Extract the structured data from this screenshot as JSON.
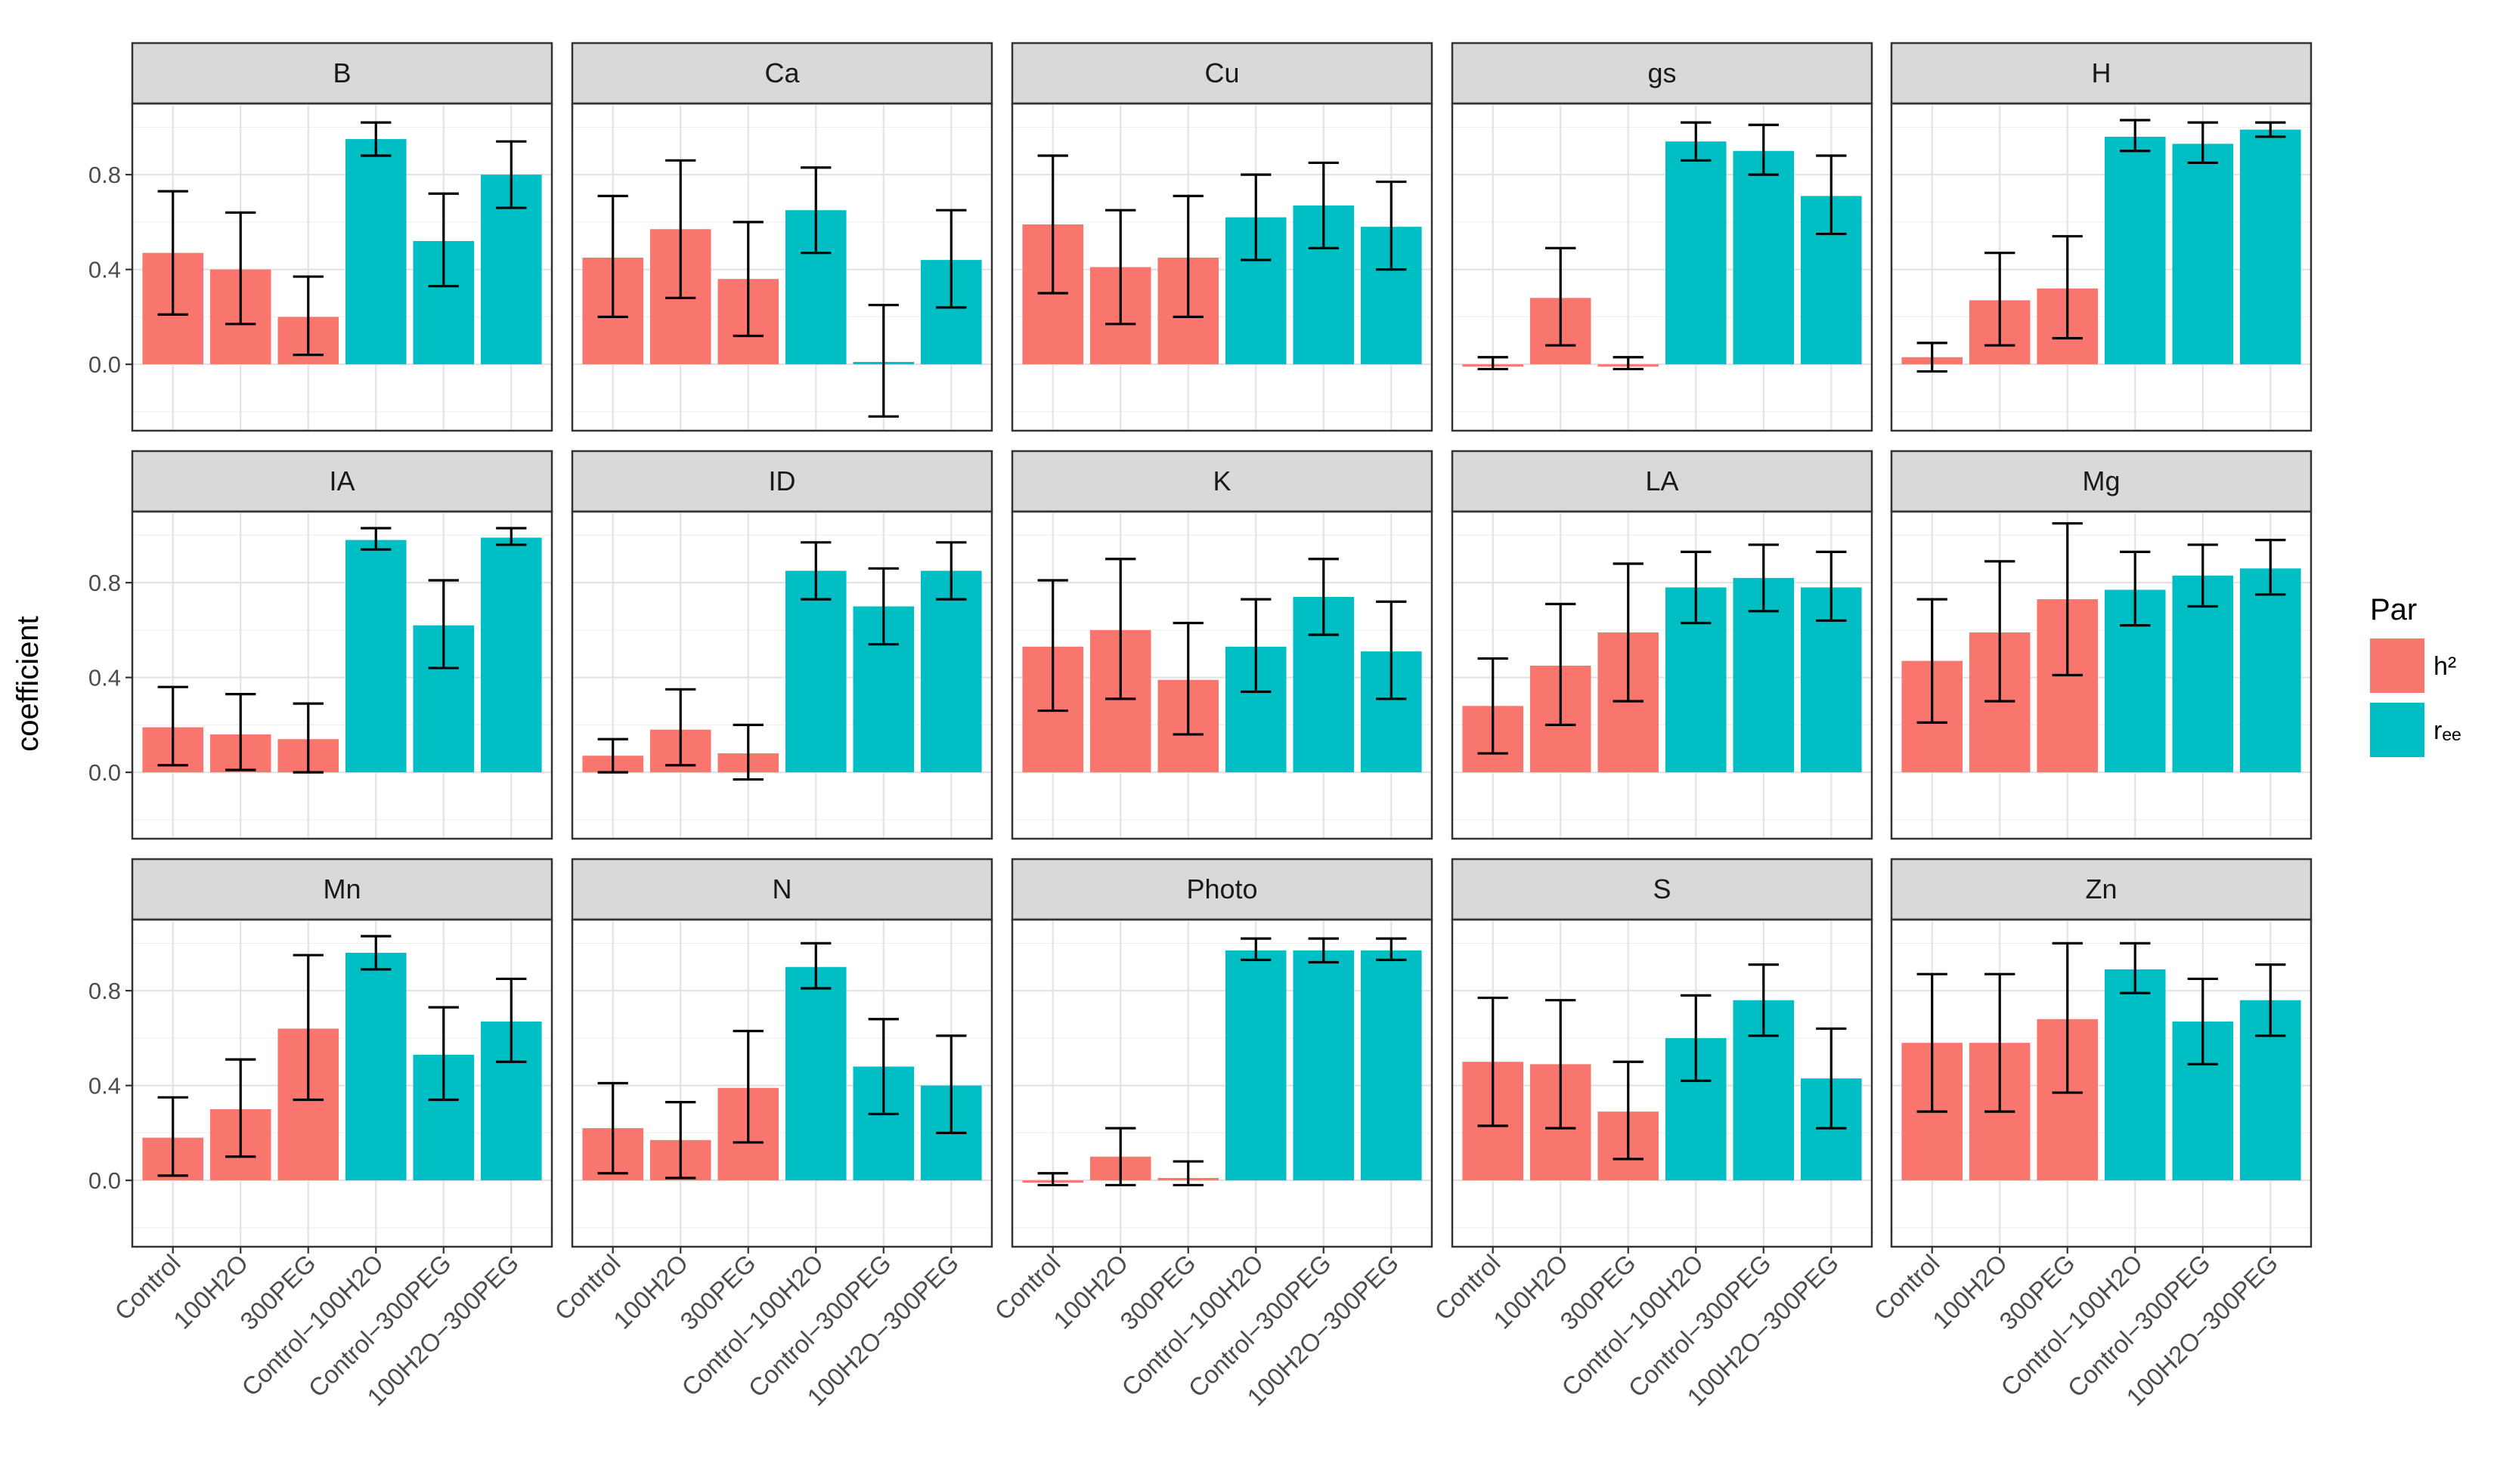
{
  "chart_data": {
    "type": "bar",
    "layout": "facet-grid 3x5",
    "ylabel": "coefficient",
    "ylim": [
      -0.28,
      1.1
    ],
    "yticks": [
      0.0,
      0.4,
      0.8
    ],
    "ytick_labels": [
      "0.0",
      "0.4",
      "0.8"
    ],
    "grid": true,
    "categories": [
      "Control",
      "100H2O",
      "300PEG",
      "Control−100H2O",
      "Control−300PEG",
      "100H2O−300PEG"
    ],
    "category_par": [
      "h2",
      "h2",
      "h2",
      "r",
      "r",
      "r"
    ],
    "legend": {
      "title": "Par",
      "position": "right",
      "items": [
        {
          "key": "h2",
          "label": "h²",
          "color": "#F8766D"
        },
        {
          "key": "r",
          "label": "rₑₑ",
          "color": "#00BFC4"
        }
      ]
    },
    "panels": [
      {
        "name": "B",
        "values": [
          0.47,
          0.4,
          0.2,
          0.95,
          0.52,
          0.8
        ],
        "lower": [
          0.21,
          0.17,
          0.04,
          0.88,
          0.33,
          0.66
        ],
        "upper": [
          0.73,
          0.64,
          0.37,
          1.02,
          0.72,
          0.94
        ]
      },
      {
        "name": "Ca",
        "values": [
          0.45,
          0.57,
          0.36,
          0.65,
          0.01,
          0.44
        ],
        "lower": [
          0.2,
          0.28,
          0.12,
          0.47,
          -0.22,
          0.24
        ],
        "upper": [
          0.71,
          0.86,
          0.6,
          0.83,
          0.25,
          0.65
        ]
      },
      {
        "name": "Cu",
        "values": [
          0.59,
          0.41,
          0.45,
          0.62,
          0.67,
          0.58
        ],
        "lower": [
          0.3,
          0.17,
          0.2,
          0.44,
          0.49,
          0.4
        ],
        "upper": [
          0.88,
          0.65,
          0.71,
          0.8,
          0.85,
          0.77
        ]
      },
      {
        "name": "gs",
        "values": [
          0.0,
          0.28,
          0.0,
          0.94,
          0.9,
          0.71
        ],
        "lower": [
          -0.02,
          0.08,
          -0.02,
          0.86,
          0.8,
          0.55
        ],
        "upper": [
          0.03,
          0.49,
          0.03,
          1.02,
          1.01,
          0.88
        ]
      },
      {
        "name": "H",
        "values": [
          0.03,
          0.27,
          0.32,
          0.96,
          0.93,
          0.99
        ],
        "lower": [
          -0.03,
          0.08,
          0.11,
          0.9,
          0.85,
          0.96
        ],
        "upper": [
          0.09,
          0.47,
          0.54,
          1.03,
          1.02,
          1.02
        ]
      },
      {
        "name": "IA",
        "values": [
          0.19,
          0.16,
          0.14,
          0.98,
          0.62,
          0.99
        ],
        "lower": [
          0.03,
          0.01,
          0.0,
          0.94,
          0.44,
          0.96
        ],
        "upper": [
          0.36,
          0.33,
          0.29,
          1.03,
          0.81,
          1.03
        ]
      },
      {
        "name": "ID",
        "values": [
          0.07,
          0.18,
          0.08,
          0.85,
          0.7,
          0.85
        ],
        "lower": [
          0.0,
          0.03,
          -0.03,
          0.73,
          0.54,
          0.73
        ],
        "upper": [
          0.14,
          0.35,
          0.2,
          0.97,
          0.86,
          0.97
        ]
      },
      {
        "name": "K",
        "values": [
          0.53,
          0.6,
          0.39,
          0.53,
          0.74,
          0.51
        ],
        "lower": [
          0.26,
          0.31,
          0.16,
          0.34,
          0.58,
          0.31
        ],
        "upper": [
          0.81,
          0.9,
          0.63,
          0.73,
          0.9,
          0.72
        ]
      },
      {
        "name": "LA",
        "values": [
          0.28,
          0.45,
          0.59,
          0.78,
          0.82,
          0.78
        ],
        "lower": [
          0.08,
          0.2,
          0.3,
          0.63,
          0.68,
          0.64
        ],
        "upper": [
          0.48,
          0.71,
          0.88,
          0.93,
          0.96,
          0.93
        ]
      },
      {
        "name": "Mg",
        "values": [
          0.47,
          0.59,
          0.73,
          0.77,
          0.83,
          0.86
        ],
        "lower": [
          0.21,
          0.3,
          0.41,
          0.62,
          0.7,
          0.75
        ],
        "upper": [
          0.73,
          0.89,
          1.05,
          0.93,
          0.96,
          0.98
        ]
      },
      {
        "name": "Mn",
        "values": [
          0.18,
          0.3,
          0.64,
          0.96,
          0.53,
          0.67
        ],
        "lower": [
          0.02,
          0.1,
          0.34,
          0.89,
          0.34,
          0.5
        ],
        "upper": [
          0.35,
          0.51,
          0.95,
          1.03,
          0.73,
          0.85
        ]
      },
      {
        "name": "N",
        "values": [
          0.22,
          0.17,
          0.39,
          0.9,
          0.48,
          0.4
        ],
        "lower": [
          0.03,
          0.01,
          0.16,
          0.81,
          0.28,
          0.2
        ],
        "upper": [
          0.41,
          0.33,
          0.63,
          1.0,
          0.68,
          0.61
        ]
      },
      {
        "name": "Photo",
        "values": [
          0.0,
          0.1,
          0.01,
          0.97,
          0.97,
          0.97
        ],
        "lower": [
          -0.02,
          -0.02,
          -0.02,
          0.93,
          0.92,
          0.93
        ],
        "upper": [
          0.03,
          0.22,
          0.08,
          1.02,
          1.02,
          1.02
        ]
      },
      {
        "name": "S",
        "values": [
          0.5,
          0.49,
          0.29,
          0.6,
          0.76,
          0.43
        ],
        "lower": [
          0.23,
          0.22,
          0.09,
          0.42,
          0.61,
          0.22
        ],
        "upper": [
          0.77,
          0.76,
          0.5,
          0.78,
          0.91,
          0.64
        ]
      },
      {
        "name": "Zn",
        "values": [
          0.58,
          0.58,
          0.68,
          0.89,
          0.67,
          0.76
        ],
        "lower": [
          0.29,
          0.29,
          0.37,
          0.79,
          0.49,
          0.61
        ],
        "upper": [
          0.87,
          0.87,
          1.0,
          1.0,
          0.85,
          0.91
        ]
      }
    ]
  }
}
